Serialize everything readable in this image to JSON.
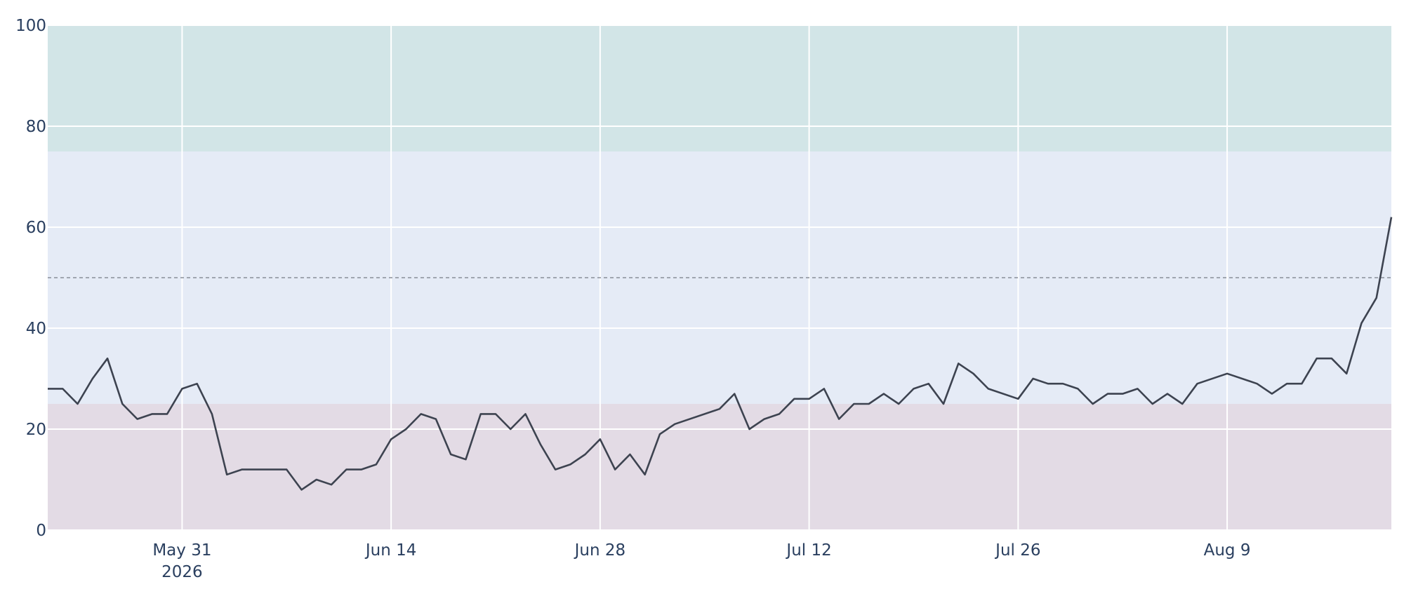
{
  "chart_data": {
    "type": "line",
    "title": "",
    "xlabel": "",
    "ylabel": "",
    "ylim": [
      0,
      100
    ],
    "xlim": [
      "2026-05-22",
      "2026-08-20"
    ],
    "grid": true,
    "y_ticks": [
      0,
      20,
      40,
      60,
      80,
      100
    ],
    "x_ticks": [
      {
        "date": "2026-05-31",
        "label": "May 31",
        "sublabel": "2026"
      },
      {
        "date": "2026-06-14",
        "label": "Jun 14",
        "sublabel": ""
      },
      {
        "date": "2026-06-28",
        "label": "Jun 28",
        "sublabel": ""
      },
      {
        "date": "2026-07-12",
        "label": "Jul 12",
        "sublabel": ""
      },
      {
        "date": "2026-07-26",
        "label": "Jul 26",
        "sublabel": ""
      },
      {
        "date": "2026-08-09",
        "label": "Aug 9",
        "sublabel": ""
      }
    ],
    "bands": [
      {
        "y0": 0,
        "y1": 25,
        "color": "#e3dbe5"
      },
      {
        "y0": 25,
        "y1": 75,
        "color": "#e5ebf6"
      },
      {
        "y0": 75,
        "y1": 100,
        "color": "#d2e5e7"
      }
    ],
    "reference_line": {
      "y": 50,
      "style": "dashed",
      "color": "#8a8f99"
    },
    "series": [
      {
        "color": "#3d4350",
        "x": [
          "2026-05-22",
          "2026-05-23",
          "2026-05-24",
          "2026-05-25",
          "2026-05-26",
          "2026-05-27",
          "2026-05-28",
          "2026-05-29",
          "2026-05-30",
          "2026-05-31",
          "2026-06-01",
          "2026-06-02",
          "2026-06-03",
          "2026-06-04",
          "2026-06-05",
          "2026-06-06",
          "2026-06-07",
          "2026-06-08",
          "2026-06-09",
          "2026-06-10",
          "2026-06-11",
          "2026-06-12",
          "2026-06-13",
          "2026-06-14",
          "2026-06-15",
          "2026-06-16",
          "2026-06-17",
          "2026-06-18",
          "2026-06-19",
          "2026-06-20",
          "2026-06-21",
          "2026-06-22",
          "2026-06-23",
          "2026-06-24",
          "2026-06-25",
          "2026-06-26",
          "2026-06-27",
          "2026-06-28",
          "2026-06-29",
          "2026-06-30",
          "2026-07-01",
          "2026-07-02",
          "2026-07-03",
          "2026-07-06",
          "2026-07-07",
          "2026-07-08",
          "2026-07-09",
          "2026-07-10",
          "2026-07-11",
          "2026-07-12",
          "2026-07-13",
          "2026-07-14",
          "2026-07-15",
          "2026-07-16",
          "2026-07-17",
          "2026-07-18",
          "2026-07-19",
          "2026-07-20",
          "2026-07-21",
          "2026-07-22",
          "2026-07-23",
          "2026-07-24",
          "2026-07-26",
          "2026-07-27",
          "2026-07-28",
          "2026-07-29",
          "2026-07-30",
          "2026-07-31",
          "2026-08-01",
          "2026-08-02",
          "2026-08-03",
          "2026-08-04",
          "2026-08-05",
          "2026-08-06",
          "2026-08-07",
          "2026-08-09",
          "2026-08-11",
          "2026-08-12",
          "2026-08-13",
          "2026-08-14",
          "2026-08-15",
          "2026-08-16",
          "2026-08-17",
          "2026-08-18",
          "2026-08-19",
          "2026-08-20"
        ],
        "y": [
          28,
          28,
          25,
          30,
          34,
          25,
          22,
          23,
          23,
          28,
          29,
          23,
          11,
          12,
          12,
          12,
          12,
          8,
          10,
          9,
          12,
          12,
          13,
          18,
          20,
          23,
          22,
          15,
          14,
          23,
          23,
          20,
          23,
          17,
          12,
          13,
          15,
          18,
          12,
          15,
          11,
          19,
          21,
          24,
          27,
          20,
          22,
          23,
          26,
          26,
          28,
          22,
          25,
          25,
          27,
          25,
          28,
          29,
          25,
          33,
          31,
          28,
          26,
          30,
          29,
          29,
          28,
          25,
          27,
          27,
          28,
          25,
          27,
          25,
          29,
          31,
          29,
          27,
          29,
          29,
          34,
          34,
          31,
          41,
          46,
          62
        ]
      }
    ]
  }
}
